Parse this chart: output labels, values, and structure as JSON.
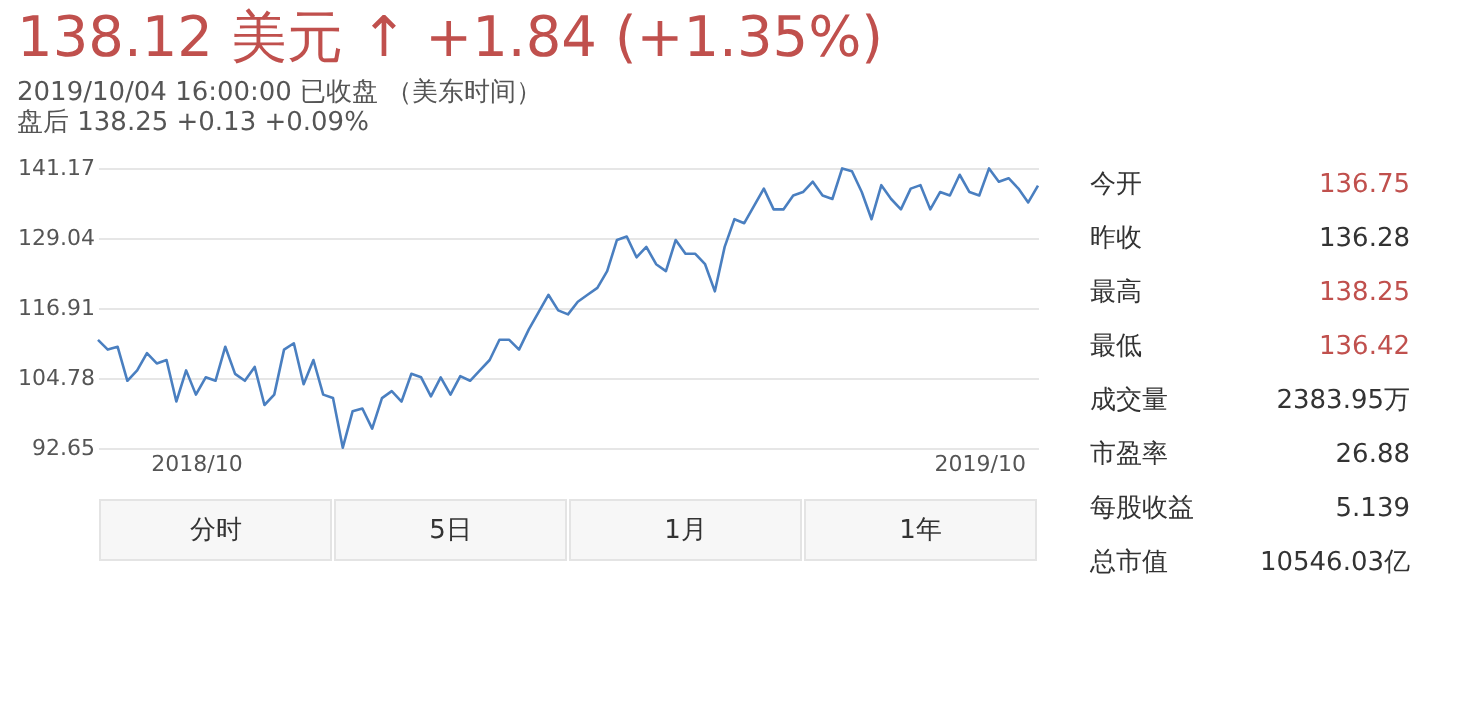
{
  "chart_data": [
    {
      "type": "line",
      "title": "138.12 美元 ↑ +1.84 (+1.35%)",
      "subtitle": [
        "2019/10/04 16:00:00   已收盘  （美东时间）",
        "盘后   138.25   +0.13   +0.09%"
      ],
      "categories": [
        null,
        null,
        null,
        null,
        null,
        null,
        null,
        null,
        null,
        null,
        "2018/10",
        null,
        null,
        null,
        null,
        null,
        null,
        null,
        null,
        null,
        null,
        null,
        null,
        null,
        null,
        null,
        null,
        null,
        null,
        null,
        null,
        null,
        null,
        null,
        null,
        null,
        null,
        null,
        null,
        null,
        null,
        null,
        null,
        null,
        null,
        null,
        null,
        null,
        null,
        null,
        null,
        null,
        null,
        null,
        null,
        null,
        null,
        null,
        null,
        null,
        null,
        null,
        null,
        null,
        null,
        null,
        null,
        null,
        null,
        null,
        null,
        null,
        null,
        null,
        null,
        null,
        null,
        null,
        null,
        null,
        null,
        null,
        null,
        null,
        null,
        null,
        null,
        null,
        null,
        null,
        "2019/10",
        null,
        null,
        null,
        null,
        null,
        null
      ],
      "values": [
        111.4,
        109.7,
        110.2,
        104.3,
        106.1,
        109.1,
        107.3,
        107.9,
        100.7,
        106.1,
        101.9,
        104.9,
        104.3,
        110.2,
        105.5,
        104.3,
        106.7,
        100.1,
        101.9,
        109.7,
        110.8,
        103.7,
        107.9,
        101.9,
        101.3,
        92.7,
        99.0,
        99.5,
        96.0,
        101.3,
        102.5,
        100.7,
        105.5,
        104.9,
        101.6,
        104.9,
        101.9,
        105.1,
        104.3,
        106.1,
        107.9,
        111.4,
        111.4,
        109.7,
        113.2,
        116.2,
        119.2,
        116.5,
        115.8,
        118.0,
        119.2,
        120.4,
        123.3,
        128.7,
        129.3,
        125.7,
        127.5,
        124.5,
        123.3,
        128.7,
        126.3,
        126.3,
        124.5,
        119.8,
        127.5,
        132.3,
        131.6,
        134.6,
        137.6,
        134.0,
        134.0,
        136.4,
        137.0,
        138.8,
        136.4,
        135.8,
        141.1,
        140.6,
        137.0,
        132.3,
        138.2,
        135.8,
        134.0,
        137.6,
        138.2,
        134.0,
        137.0,
        136.4,
        140.0,
        137.0,
        136.4,
        141.1,
        138.8,
        139.4,
        137.6,
        135.2,
        138.1
      ],
      "color": "#4a7fc0",
      "ylim": [
        92.65,
        141.17
      ],
      "yticks": [
        92.65,
        104.78,
        116.91,
        129.04,
        141.17
      ],
      "grid": "y",
      "annotations": [
        "分时",
        "5日",
        "1月",
        "1年"
      ]
    },
    {
      "type": "other",
      "annotations": [
        "今开",
        "136.75",
        "昨收",
        "136.28",
        "最高",
        "138.25",
        "最低",
        "136.42",
        "成交量",
        "2383.95万",
        "市盈率",
        "26.88",
        "每股收益",
        "5.139",
        "总市值",
        "10546.03亿"
      ]
    }
  ]
}
